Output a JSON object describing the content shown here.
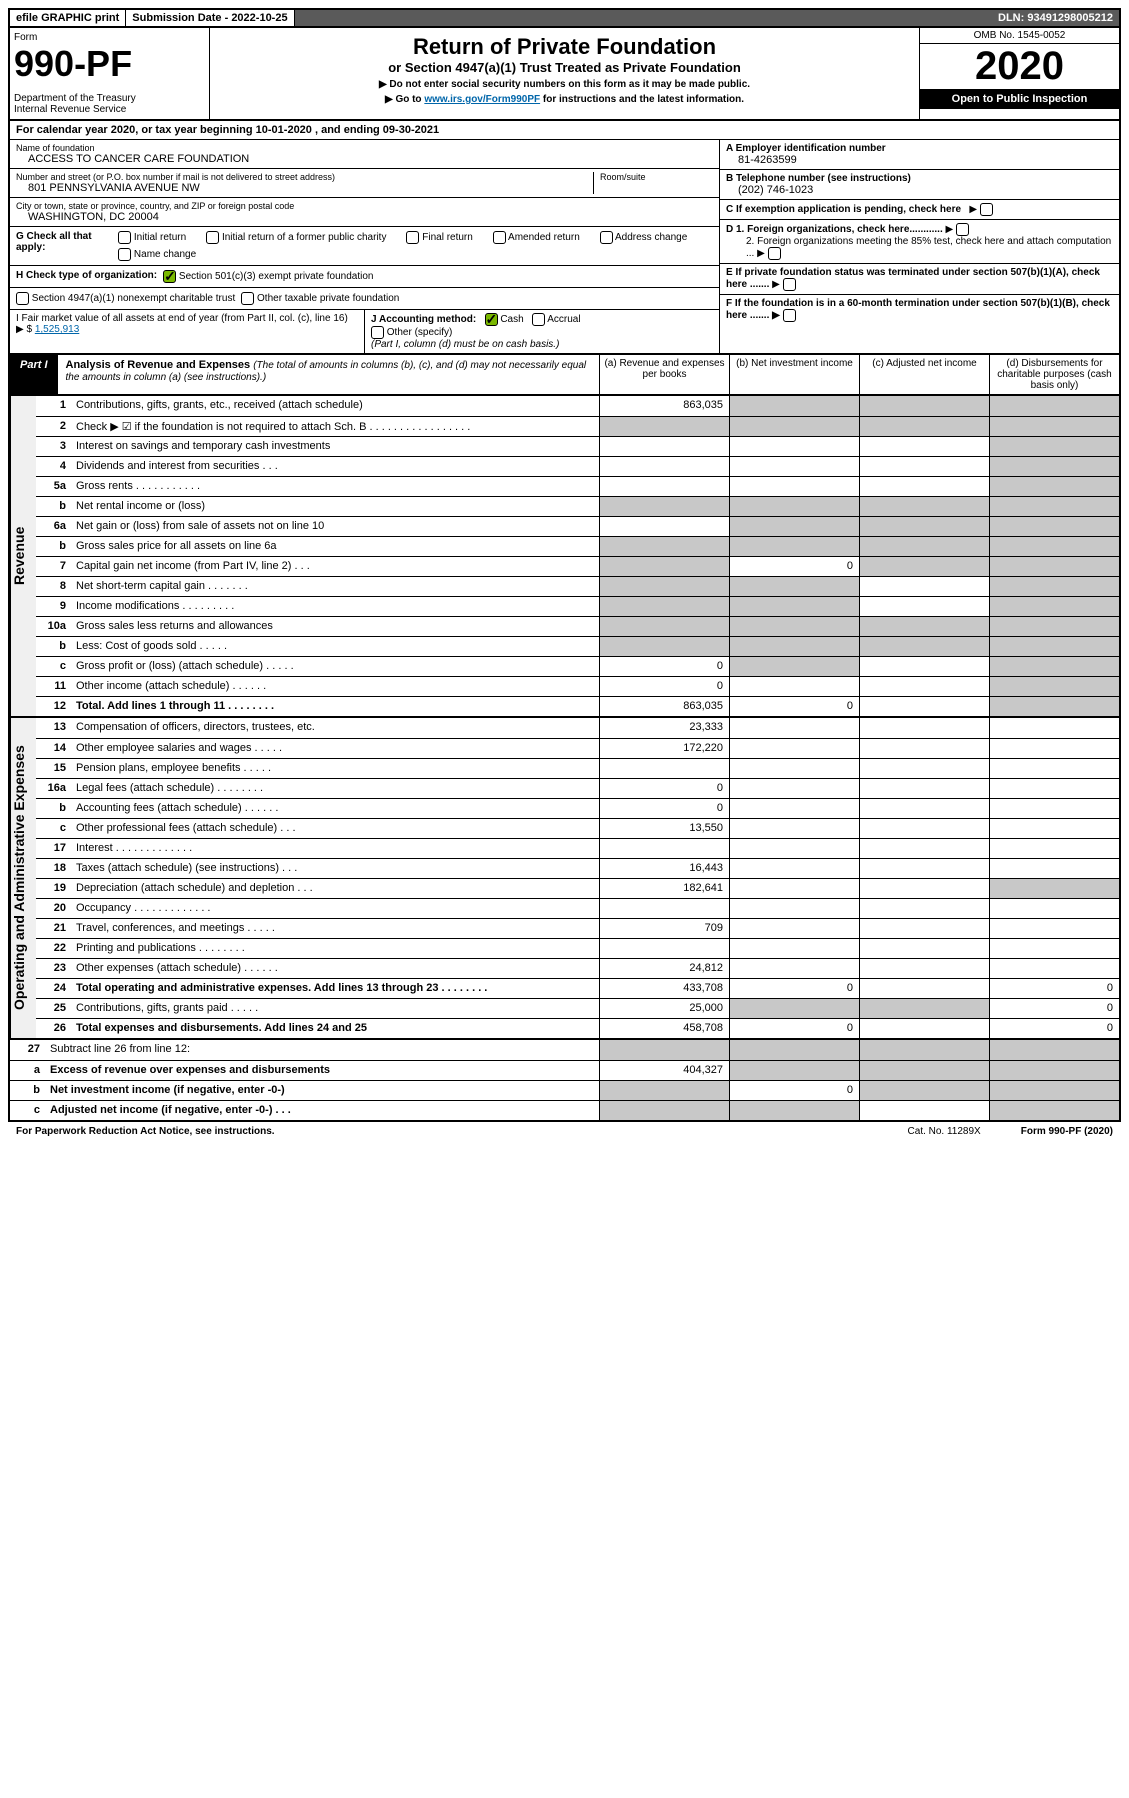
{
  "top": {
    "efile": "efile GRAPHIC print",
    "sub_lbl": "Submission Date - 2022-10-25",
    "dln": "DLN: 93491298005212"
  },
  "header": {
    "form": "Form",
    "num": "990-PF",
    "dept": "Department of the Treasury\nInternal Revenue Service",
    "title": "Return of Private Foundation",
    "sub": "or Section 4947(a)(1) Trust Treated as Private Foundation",
    "instr1": "▶ Do not enter social security numbers on this form as it may be made public.",
    "instr2": "▶ Go to ",
    "instr2_link": "www.irs.gov/Form990PF",
    "instr2_tail": " for instructions and the latest information.",
    "omb": "OMB No. 1545-0052",
    "year": "2020",
    "open": "Open to Public Inspection"
  },
  "cal": "For calendar year 2020, or tax year beginning 10-01-2020               , and ending 09-30-2021",
  "info": {
    "name_lbl": "Name of foundation",
    "name": "ACCESS TO CANCER CARE FOUNDATION",
    "addr_lbl": "Number and street (or P.O. box number if mail is not delivered to street address)",
    "addr": "801 PENNSYLVANIA AVENUE NW",
    "room_lbl": "Room/suite",
    "city_lbl": "City or town, state or province, country, and ZIP or foreign postal code",
    "city": "WASHINGTON, DC  20004",
    "ein_lbl": "A Employer identification number",
    "ein": "81-4263599",
    "phone_lbl": "B Telephone number (see instructions)",
    "phone": "(202) 746-1023",
    "c_lbl": "C If exemption application is pending, check here",
    "g_lbl": "G Check all that apply:",
    "g_opts": [
      "Initial return",
      "Initial return of a former public charity",
      "Final return",
      "Amended return",
      "Address change",
      "Name change"
    ],
    "h_lbl": "H Check type of organization:",
    "h_opts": [
      "Section 501(c)(3) exempt private foundation",
      "Section 4947(a)(1) nonexempt charitable trust",
      "Other taxable private foundation"
    ],
    "i_lbl": "I Fair market value of all assets at end of year (from Part II, col. (c), line 16) ▶ $",
    "i_val": "1,525,913",
    "j_lbl": "J Accounting method:",
    "j_opts": [
      "Cash",
      "Accrual"
    ],
    "j_other": "Other (specify)",
    "j_note": "(Part I, column (d) must be on cash basis.)",
    "d1": "D 1. Foreign organizations, check here............",
    "d2": "2. Foreign organizations meeting the 85% test, check here and attach computation ...",
    "e_lbl": "E  If private foundation status was terminated under section 507(b)(1)(A), check here .......",
    "f_lbl": "F  If the foundation is in a 60-month termination under section 507(b)(1)(B), check here .......  ▶"
  },
  "part1": {
    "lbl": "Part I",
    "title": "Analysis of Revenue and Expenses ",
    "note": "(The total of amounts in columns (b), (c), and (d) may not necessarily equal the amounts in column (a) (see instructions).)",
    "cols": {
      "a": "(a)   Revenue and expenses per books",
      "b": "(b)   Net investment income",
      "c": "(c)   Adjusted net income",
      "d": "(d)   Disbursements for charitable purposes (cash basis only)"
    }
  },
  "side": {
    "rev": "Revenue",
    "exp": "Operating and Administrative Expenses"
  },
  "lines": [
    {
      "n": "1",
      "t": "Contributions, gifts, grants, etc., received (attach schedule)",
      "a": "863,035",
      "b_s": true,
      "c_s": true,
      "d_s": true
    },
    {
      "n": "2",
      "t": "Check ▶ ☑ if the foundation is not required to attach Sch. B  . . . . . . . . . . . . . . . . .",
      "a_s": true,
      "b_s": true,
      "c_s": true,
      "d_s": true
    },
    {
      "n": "3",
      "t": "Interest on savings and temporary cash investments",
      "a": "",
      "b": "",
      "c": "",
      "d_s": true
    },
    {
      "n": "4",
      "t": "Dividends and interest from securities  . . .",
      "a": "",
      "b": "",
      "c": "",
      "d_s": true
    },
    {
      "n": "5a",
      "t": "Gross rents  . . . . . . . . . . .",
      "a": "",
      "b": "",
      "c": "",
      "d_s": true
    },
    {
      "n": "b",
      "t": "Net rental income or (loss)",
      "a_s": true,
      "b_s": true,
      "c_s": true,
      "d_s": true
    },
    {
      "n": "6a",
      "t": "Net gain or (loss) from sale of assets not on line 10",
      "a": "",
      "b_s": true,
      "c_s": true,
      "d_s": true
    },
    {
      "n": "b",
      "t": "Gross sales price for all assets on line 6a",
      "a_s": true,
      "b_s": true,
      "c_s": true,
      "d_s": true
    },
    {
      "n": "7",
      "t": "Capital gain net income (from Part IV, line 2)  . . .",
      "a_s": true,
      "b": "0",
      "c_s": true,
      "d_s": true
    },
    {
      "n": "8",
      "t": "Net short-term capital gain  . . . . . . .",
      "a_s": true,
      "b_s": true,
      "c": "",
      "d_s": true
    },
    {
      "n": "9",
      "t": "Income modifications  . . . . . . . . .",
      "a_s": true,
      "b_s": true,
      "c": "",
      "d_s": true
    },
    {
      "n": "10a",
      "t": "Gross sales less returns and allowances",
      "a_s": true,
      "b_s": true,
      "c_s": true,
      "d_s": true
    },
    {
      "n": "b",
      "t": "Less: Cost of goods sold  . . . . .",
      "a_s": true,
      "b_s": true,
      "c_s": true,
      "d_s": true
    },
    {
      "n": "c",
      "t": "Gross profit or (loss) (attach schedule)  . . . . .",
      "a": "0",
      "b_s": true,
      "c": "",
      "d_s": true
    },
    {
      "n": "11",
      "t": "Other income (attach schedule)  . . . . . .",
      "a": "0",
      "b": "",
      "c": "",
      "d_s": true
    },
    {
      "n": "12",
      "t": "Total. Add lines 1 through 11  . . . . . . . .",
      "a": "863,035",
      "b": "0",
      "c": "",
      "d_s": true,
      "bold": true
    }
  ],
  "exp_lines": [
    {
      "n": "13",
      "t": "Compensation of officers, directors, trustees, etc.",
      "a": "23,333",
      "b": "",
      "c": "",
      "d": ""
    },
    {
      "n": "14",
      "t": "Other employee salaries and wages  . . . . .",
      "a": "172,220",
      "b": "",
      "c": "",
      "d": ""
    },
    {
      "n": "15",
      "t": "Pension plans, employee benefits  . . . . .",
      "a": "",
      "b": "",
      "c": "",
      "d": ""
    },
    {
      "n": "16a",
      "t": "Legal fees (attach schedule) . . . . . . . .",
      "a": "0",
      "b": "",
      "c": "",
      "d": ""
    },
    {
      "n": "b",
      "t": "Accounting fees (attach schedule) . . . . . .",
      "a": "0",
      "b": "",
      "c": "",
      "d": ""
    },
    {
      "n": "c",
      "t": "Other professional fees (attach schedule)  . . .",
      "a": "13,550",
      "b": "",
      "c": "",
      "d": ""
    },
    {
      "n": "17",
      "t": "Interest  . . . . . . . . . . . . .",
      "a": "",
      "b": "",
      "c": "",
      "d": ""
    },
    {
      "n": "18",
      "t": "Taxes (attach schedule) (see instructions)  . . .",
      "a": "16,443",
      "b": "",
      "c": "",
      "d": ""
    },
    {
      "n": "19",
      "t": "Depreciation (attach schedule) and depletion  . . .",
      "a": "182,641",
      "b": "",
      "c": "",
      "d_s": true
    },
    {
      "n": "20",
      "t": "Occupancy . . . . . . . . . . . . .",
      "a": "",
      "b": "",
      "c": "",
      "d": ""
    },
    {
      "n": "21",
      "t": "Travel, conferences, and meetings  . . . . .",
      "a": "709",
      "b": "",
      "c": "",
      "d": ""
    },
    {
      "n": "22",
      "t": "Printing and publications  . . . . . . . .",
      "a": "",
      "b": "",
      "c": "",
      "d": ""
    },
    {
      "n": "23",
      "t": "Other expenses (attach schedule) . . . . . .",
      "a": "24,812",
      "b": "",
      "c": "",
      "d": ""
    },
    {
      "n": "24",
      "t": "Total operating and administrative expenses. Add lines 13 through 23  . . . . . . . .",
      "a": "433,708",
      "b": "0",
      "c": "",
      "d": "0",
      "bold": true
    },
    {
      "n": "25",
      "t": "Contributions, gifts, grants paid  . . . . .",
      "a": "25,000",
      "b_s": true,
      "c_s": true,
      "d": "0"
    },
    {
      "n": "26",
      "t": "Total expenses and disbursements. Add lines 24 and 25",
      "a": "458,708",
      "b": "0",
      "c": "",
      "d": "0",
      "bold": true
    }
  ],
  "net_lines": [
    {
      "n": "27",
      "t": "Subtract line 26 from line 12:",
      "a_s": true,
      "b_s": true,
      "c_s": true,
      "d_s": true
    },
    {
      "n": "a",
      "t": "Excess of revenue over expenses and disbursements",
      "a": "404,327",
      "b_s": true,
      "c_s": true,
      "d_s": true,
      "bold": true
    },
    {
      "n": "b",
      "t": "Net investment income (if negative, enter -0-)",
      "a_s": true,
      "b": "0",
      "c_s": true,
      "d_s": true,
      "bold": true
    },
    {
      "n": "c",
      "t": "Adjusted net income (if negative, enter -0-)  . . .",
      "a_s": true,
      "b_s": true,
      "c": "",
      "d_s": true,
      "bold": true
    }
  ],
  "footer": {
    "l": "For Paperwork Reduction Act Notice, see instructions.",
    "m": "Cat. No. 11289X",
    "r": "Form 990-PF (2020)"
  }
}
